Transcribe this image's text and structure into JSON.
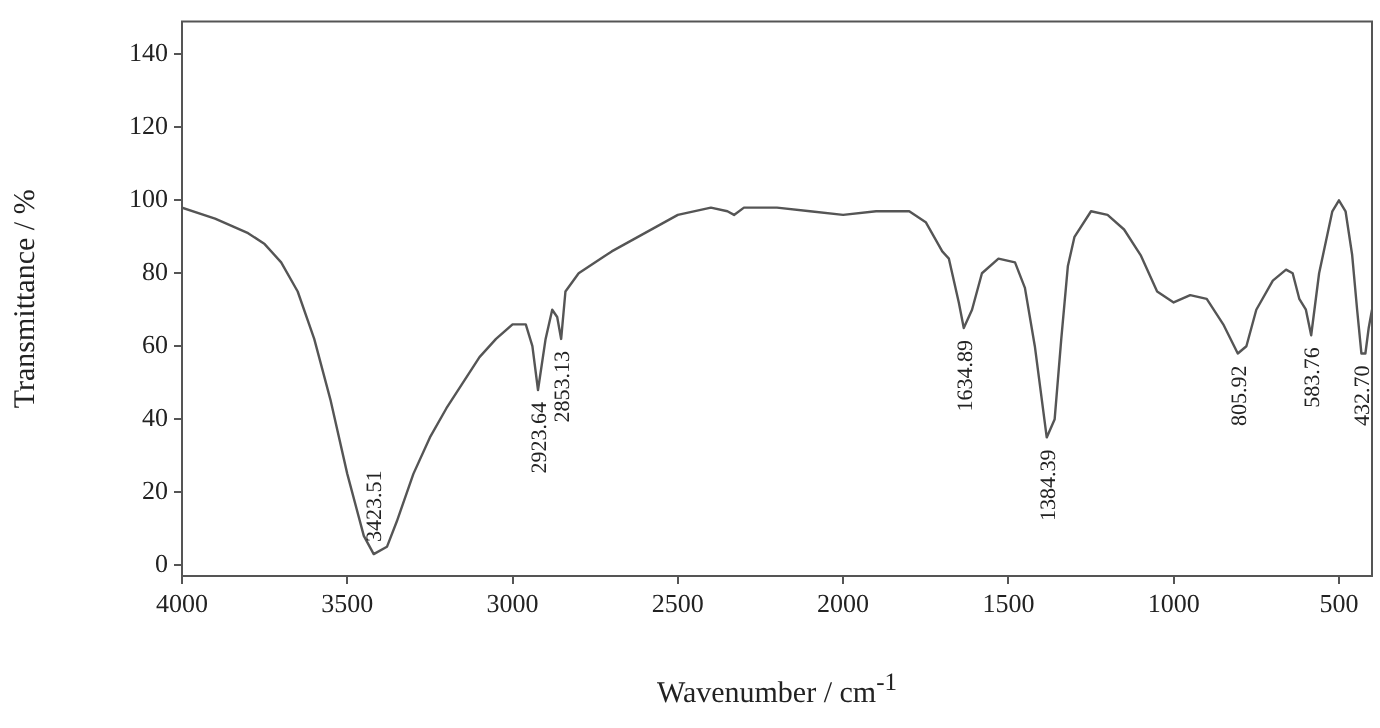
{
  "chart_data": {
    "type": "line",
    "xlabel": "Wavenumber / cm$^{-1}$",
    "ylabel": "Transmittance / %",
    "xlim": [
      4000,
      400
    ],
    "ylim": [
      -3,
      149
    ],
    "xticks": [
      4000,
      3500,
      3000,
      2500,
      2000,
      1500,
      1000,
      500
    ],
    "yticks": [
      0,
      20,
      40,
      60,
      80,
      100,
      120,
      140
    ],
    "grid": false,
    "legend": false,
    "marker": "none",
    "line_style": "solid",
    "series": [
      {
        "color": "#555555",
        "x": [
          4000,
          3900,
          3800,
          3750,
          3700,
          3650,
          3600,
          3550,
          3500,
          3450,
          3420,
          3380,
          3350,
          3300,
          3250,
          3200,
          3150,
          3100,
          3050,
          3000,
          2960,
          2940,
          2923,
          2900,
          2880,
          2865,
          2853,
          2840,
          2800,
          2700,
          2600,
          2500,
          2400,
          2350,
          2330,
          2300,
          2200,
          2100,
          2000,
          1900,
          1800,
          1750,
          1700,
          1680,
          1650,
          1635,
          1610,
          1580,
          1530,
          1480,
          1450,
          1420,
          1384,
          1360,
          1340,
          1320,
          1300,
          1250,
          1200,
          1150,
          1100,
          1050,
          1000,
          950,
          900,
          850,
          806,
          780,
          750,
          700,
          660,
          640,
          620,
          600,
          584,
          560,
          520,
          500,
          480,
          460,
          445,
          432,
          420,
          410,
          400
        ],
        "values": [
          98,
          95,
          91,
          88,
          83,
          75,
          62,
          45,
          25,
          8,
          3,
          5,
          12,
          25,
          35,
          43,
          50,
          57,
          62,
          66,
          66,
          60,
          48,
          62,
          70,
          68,
          62,
          75,
          80,
          86,
          91,
          96,
          98,
          97,
          96,
          98,
          98,
          97,
          96,
          97,
          97,
          94,
          86,
          84,
          72,
          65,
          70,
          80,
          84,
          83,
          76,
          60,
          35,
          40,
          62,
          82,
          90,
          97,
          96,
          92,
          85,
          75,
          72,
          74,
          73,
          66,
          58,
          60,
          70,
          78,
          81,
          80,
          73,
          70,
          63,
          80,
          97,
          100,
          97,
          85,
          70,
          58,
          58,
          65,
          70
        ]
      }
    ],
    "annotations": [
      {
        "text": "3423.51",
        "x": 3423.51,
        "y": 3
      },
      {
        "text": "2923.64",
        "x": 2923.64,
        "y": 48
      },
      {
        "text": "2853.13",
        "x": 2853.13,
        "y": 62
      },
      {
        "text": "1634.89",
        "x": 1634.89,
        "y": 65
      },
      {
        "text": "1384.39",
        "x": 1384.39,
        "y": 35
      },
      {
        "text": "805.92",
        "x": 805.92,
        "y": 58
      },
      {
        "text": "583.76",
        "x": 583.76,
        "y": 63
      },
      {
        "text": "432.70",
        "x": 432.7,
        "y": 58
      }
    ]
  }
}
